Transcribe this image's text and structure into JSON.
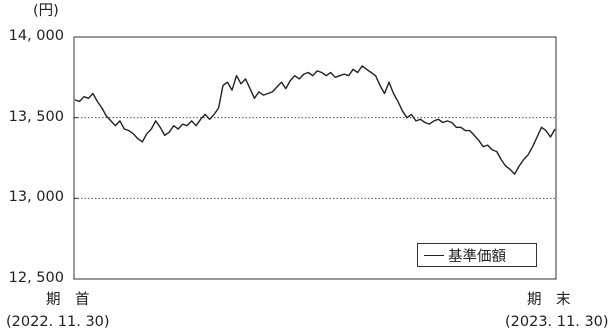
{
  "chart_data": {
    "type": "line",
    "title": "",
    "unit_label": "(円)",
    "ylim": [
      12500,
      14000
    ],
    "yticks": [
      12500,
      13000,
      13500,
      14000
    ],
    "ytick_labels": [
      "12, 500",
      "13, 000",
      "13, 500",
      "14, 000"
    ],
    "grid": "dotted horizontal lines at 13,000 and 13,500",
    "legend": "bottom-right",
    "x_start": {
      "label": "期　首",
      "date": "(2022. 11. 30)"
    },
    "x_end": {
      "label": "期　末",
      "date": "(2023. 11. 30)"
    },
    "series": [
      {
        "name": "基準価額",
        "color": "#222222",
        "values": [
          13610,
          13600,
          13630,
          13620,
          13650,
          13600,
          13560,
          13510,
          13480,
          13450,
          13480,
          13430,
          13420,
          13400,
          13370,
          13350,
          13400,
          13430,
          13480,
          13440,
          13390,
          13410,
          13450,
          13430,
          13460,
          13450,
          13480,
          13450,
          13490,
          13520,
          13490,
          13520,
          13560,
          13700,
          13720,
          13670,
          13760,
          13710,
          13740,
          13680,
          13620,
          13660,
          13640,
          13650,
          13660,
          13690,
          13720,
          13680,
          13730,
          13760,
          13740,
          13770,
          13780,
          13760,
          13790,
          13780,
          13760,
          13780,
          13750,
          13760,
          13770,
          13760,
          13800,
          13780,
          13820,
          13800,
          13780,
          13760,
          13700,
          13650,
          13720,
          13650,
          13600,
          13540,
          13500,
          13520,
          13480,
          13490,
          13470,
          13460,
          13480,
          13490,
          13470,
          13480,
          13470,
          13440,
          13440,
          13420,
          13420,
          13390,
          13360,
          13320,
          13330,
          13300,
          13290,
          13240,
          13200,
          13180,
          13150,
          13200,
          13240,
          13270,
          13320,
          13380,
          13440,
          13420,
          13380,
          13430
        ]
      }
    ]
  }
}
